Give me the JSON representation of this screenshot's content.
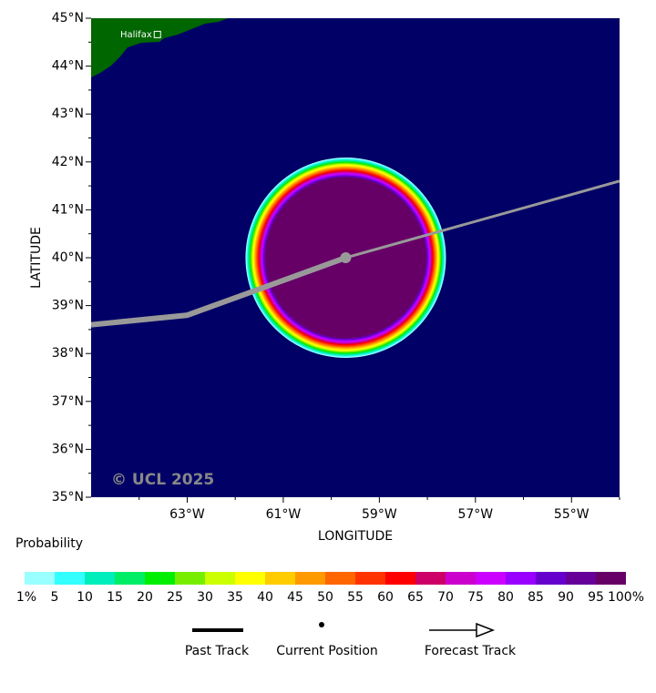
{
  "map": {
    "xlim": [
      -65,
      -54
    ],
    "ylim": [
      35,
      45
    ],
    "xticks": [
      {
        "value": -63,
        "label": "63°W"
      },
      {
        "value": -61,
        "label": "61°W"
      },
      {
        "value": -59,
        "label": "59°W"
      },
      {
        "value": -57,
        "label": "57°W"
      },
      {
        "value": -55,
        "label": "55°W"
      }
    ],
    "xminorticks": [
      -64,
      -62,
      -60,
      -58,
      -56,
      -54
    ],
    "yticks": [
      {
        "value": 35,
        "label": "35°N"
      },
      {
        "value": 36,
        "label": "36°N"
      },
      {
        "value": 37,
        "label": "37°N"
      },
      {
        "value": 38,
        "label": "38°N"
      },
      {
        "value": 39,
        "label": "39°N"
      },
      {
        "value": 40,
        "label": "40°N"
      },
      {
        "value": 41,
        "label": "41°N"
      },
      {
        "value": 42,
        "label": "42°N"
      },
      {
        "value": 43,
        "label": "43°N"
      },
      {
        "value": 44,
        "label": "44°N"
      },
      {
        "value": 45,
        "label": "45°N"
      }
    ],
    "yminorticks": [
      35.5,
      36.5,
      37.5,
      38.5,
      39.5,
      40.5,
      41.5,
      42.5,
      43.5,
      44.5
    ],
    "xlabel": "LONGITUDE",
    "ylabel": "LATITUDE",
    "watermark": "© UCL 2025",
    "places": [
      {
        "name": "Halifax",
        "lon": -63.62,
        "lat": 44.66
      }
    ],
    "past_track": {
      "lon": [
        -65,
        -63,
        -59.7
      ],
      "lat": [
        38.6,
        38.8,
        40.0
      ]
    },
    "current_position": {
      "lon": -59.7,
      "lat": 40.0
    },
    "forecast_track": {
      "lon": [
        -59.7,
        -54
      ],
      "lat": [
        40.0,
        41.6
      ]
    }
  },
  "colorbar": {
    "title": "Probability",
    "colors": [
      "#99ffff",
      "#33ffff",
      "#00eebb",
      "#00ee66",
      "#00ee00",
      "#77ee00",
      "#ccff00",
      "#ffff00",
      "#ffcc00",
      "#ff9900",
      "#ff6600",
      "#ff3300",
      "#ff0000",
      "#cc0066",
      "#cc00cc",
      "#cc00ff",
      "#9900ff",
      "#6600cc",
      "#660099",
      "#660066"
    ],
    "ticks": [
      {
        "value": 1,
        "label": "1%"
      },
      5,
      10,
      15,
      20,
      25,
      30,
      35,
      40,
      45,
      50,
      55,
      60,
      65,
      70,
      75,
      80,
      85,
      90,
      95,
      {
        "value": 100,
        "label": "100%"
      }
    ]
  },
  "legend": [
    "Past Track",
    "Current Position",
    "Forecast Track"
  ]
}
